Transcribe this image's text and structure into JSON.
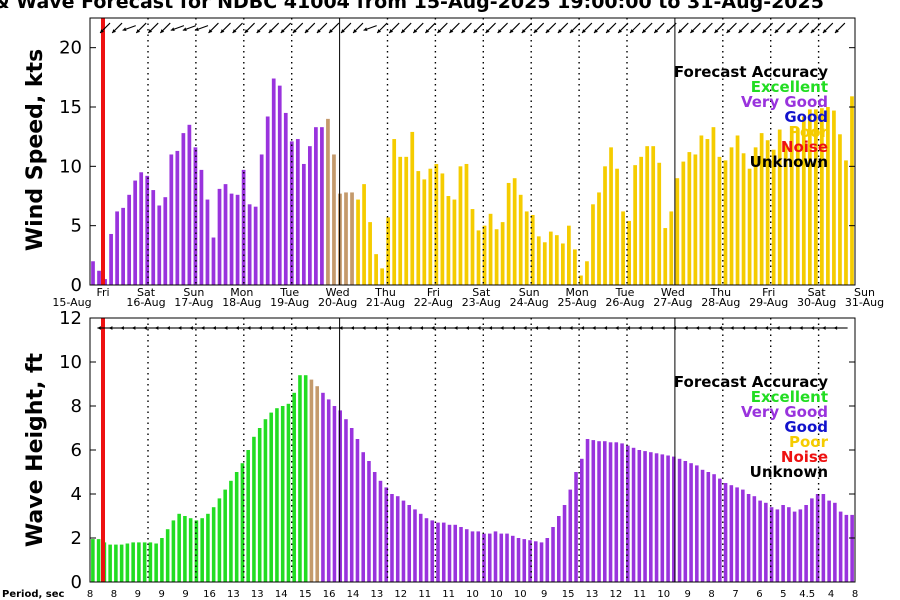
{
  "title": "& Wave Forecast for NDBC 41004 from 15-Aug-2025 19:00:00 to 31-Aug-2025",
  "colors": {
    "excellent": "#22dd22",
    "very_good": "#9933dd",
    "good": "#1111cc",
    "poor": "#f5cc00",
    "noise": "#ee1111",
    "unknown": "#000000",
    "transition": "#c49a6c",
    "now_line": "#ee1111"
  },
  "legend": {
    "title": "Forecast Accuracy",
    "items": [
      {
        "label": "Excellent",
        "color": "#22dd22"
      },
      {
        "label": "Very Good",
        "color": "#9933dd"
      },
      {
        "label": "Good",
        "color": "#1111cc"
      },
      {
        "label": "Poor",
        "color": "#f5cc00"
      },
      {
        "label": "Noise",
        "color": "#ee1111"
      },
      {
        "label": "Unknown",
        "color": "#000000"
      }
    ]
  },
  "day_labels": [
    {
      "day": "Fri",
      "date": "15-Aug"
    },
    {
      "day": "Sat",
      "date": "16-Aug"
    },
    {
      "day": "Sun",
      "date": "17-Aug"
    },
    {
      "day": "Mon",
      "date": "18-Aug"
    },
    {
      "day": "Tue",
      "date": "19-Aug"
    },
    {
      "day": "Wed",
      "date": "20-Aug"
    },
    {
      "day": "Thu",
      "date": "21-Aug"
    },
    {
      "day": "Fri",
      "date": "22-Aug"
    },
    {
      "day": "Sat",
      "date": "23-Aug"
    },
    {
      "day": "Sun",
      "date": "24-Aug"
    },
    {
      "day": "Mon",
      "date": "25-Aug"
    },
    {
      "day": "Tue",
      "date": "26-Aug"
    },
    {
      "day": "Wed",
      "date": "27-Aug"
    },
    {
      "day": "Thu",
      "date": "28-Aug"
    },
    {
      "day": "Fri",
      "date": "29-Aug"
    },
    {
      "day": "Sat",
      "date": "30-Aug"
    },
    {
      "day": "Sun",
      "date": "31-Aug"
    }
  ],
  "period_label": "Period, sec",
  "period_values": [
    "8",
    "8",
    "9",
    "9",
    "9",
    "16",
    "13",
    "13",
    "14",
    "15",
    "16",
    "14",
    "13",
    "12",
    "11",
    "11",
    "10",
    "10",
    "10",
    "9",
    "15",
    "13",
    "12",
    "11",
    "10",
    "9",
    "8",
    "7",
    "6",
    "5",
    "4.5",
    "4",
    "8"
  ],
  "chart_data": [
    {
      "type": "bar",
      "ylabel": "Wind Speed, kts",
      "ylim": [
        0,
        22.5
      ],
      "yticks": [
        0,
        5,
        10,
        15,
        20
      ],
      "x_unit": "3-hour intervals from 15-Aug 19:00",
      "values": [
        2.0,
        1.2,
        0.5,
        4.3,
        6.2,
        6.5,
        7.6,
        8.8,
        9.5,
        9.2,
        8.0,
        6.7,
        7.4,
        11.0,
        11.3,
        12.8,
        13.5,
        11.6,
        9.7,
        7.2,
        4.0,
        8.1,
        8.5,
        7.7,
        7.6,
        9.7,
        6.8,
        6.6,
        11.0,
        14.2,
        17.4,
        16.8,
        14.5,
        12.1,
        12.3,
        10.2,
        11.7,
        13.3,
        13.3,
        14.0,
        11.0,
        7.7,
        7.8,
        7.8,
        7.2,
        8.5,
        5.3,
        2.6,
        1.4,
        5.7,
        12.3,
        10.8,
        10.8,
        12.9,
        9.6,
        8.9,
        9.8,
        10.2,
        9.4,
        7.5,
        7.2,
        10.0,
        10.2,
        6.4,
        4.6,
        5.0,
        6.0,
        4.7,
        5.3,
        8.6,
        9.0,
        7.6,
        6.2,
        5.9,
        4.1,
        3.6,
        4.5,
        4.2,
        3.5,
        5.0,
        3.0,
        0.8,
        2.0,
        6.8,
        7.8,
        10.0,
        11.6,
        9.8,
        6.2,
        5.4,
        10.1,
        10.8,
        11.7,
        11.7,
        10.3,
        4.8,
        6.2,
        9.0,
        10.4,
        11.2,
        11.0,
        12.6,
        12.3,
        13.3,
        10.8,
        10.5,
        11.6,
        12.6,
        11.1,
        9.8,
        11.6,
        12.8,
        12.2,
        11.4,
        13.1,
        11.9,
        13.4,
        13.2,
        14.2,
        14.8,
        14.8,
        14.9,
        15.0,
        14.7,
        12.7,
        10.5,
        15.9
      ],
      "accuracy": [
        "very_good",
        "very_good",
        "very_good",
        "very_good",
        "very_good",
        "very_good",
        "very_good",
        "very_good",
        "very_good",
        "very_good",
        "very_good",
        "very_good",
        "very_good",
        "very_good",
        "very_good",
        "very_good",
        "very_good",
        "very_good",
        "very_good",
        "very_good",
        "very_good",
        "very_good",
        "very_good",
        "very_good",
        "very_good",
        "very_good",
        "very_good",
        "very_good",
        "very_good",
        "very_good",
        "very_good",
        "very_good",
        "very_good",
        "very_good",
        "very_good",
        "very_good",
        "very_good",
        "very_good",
        "very_good",
        "transition",
        "transition",
        "transition",
        "transition",
        "transition",
        "poor",
        "poor",
        "poor",
        "poor",
        "poor",
        "poor",
        "poor",
        "poor",
        "poor",
        "poor",
        "poor",
        "poor",
        "poor",
        "poor",
        "poor",
        "poor",
        "poor",
        "poor",
        "poor",
        "poor",
        "poor",
        "poor",
        "poor",
        "poor",
        "poor",
        "poor",
        "poor",
        "poor",
        "poor",
        "poor",
        "poor",
        "poor",
        "poor",
        "poor",
        "poor",
        "poor",
        "poor",
        "poor",
        "poor",
        "poor",
        "poor",
        "poor",
        "poor",
        "poor",
        "poor",
        "poor",
        "poor",
        "poor",
        "poor",
        "poor",
        "poor",
        "poor",
        "poor",
        "poor",
        "poor",
        "poor",
        "poor",
        "poor",
        "poor",
        "poor",
        "poor",
        "poor",
        "poor",
        "poor",
        "poor",
        "poor",
        "poor",
        "poor",
        "poor",
        "poor",
        "poor",
        "poor",
        "poor",
        "poor",
        "poor",
        "poor",
        "poor",
        "poor",
        "poor",
        "poor",
        "poor",
        "poor",
        "poor",
        "poor",
        "poor"
      ],
      "direction_deg": [
        225,
        225,
        225,
        225,
        225,
        225,
        200,
        200,
        225,
        225,
        225,
        225,
        225,
        225,
        200,
        225,
        200,
        200,
        200,
        225,
        225,
        200,
        225,
        225,
        225,
        225,
        225,
        225,
        225,
        225,
        225,
        225,
        225,
        225,
        225,
        225,
        225,
        225,
        225,
        225,
        225,
        225,
        225,
        225,
        225,
        225,
        200,
        225,
        225,
        225,
        225,
        225,
        225,
        225,
        225,
        225,
        225,
        225,
        225,
        225,
        225,
        225,
        225,
        225,
        225,
        225,
        225,
        225,
        225,
        225,
        225,
        225,
        225,
        225,
        225,
        225,
        225,
        225,
        225,
        225,
        225,
        225,
        225,
        225,
        225,
        225,
        225,
        225,
        225,
        225,
        225,
        225,
        225,
        225,
        225,
        225,
        225,
        225,
        225,
        225,
        225,
        225,
        225,
        225,
        225,
        225,
        225,
        225,
        225,
        225,
        225,
        225,
        225,
        225,
        225,
        225,
        225,
        225,
        225,
        225,
        225,
        225,
        225,
        225,
        225,
        225,
        225,
        225,
        225,
        225,
        225,
        225,
        225,
        225
      ]
    },
    {
      "type": "bar",
      "ylabel": "Wave Height, ft",
      "ylim": [
        0,
        12
      ],
      "yticks": [
        0,
        2,
        4,
        6,
        8,
        10,
        12
      ],
      "x_unit": "3-hour intervals from 15-Aug 19:00",
      "values": [
        1.95,
        1.95,
        1.8,
        1.7,
        1.7,
        1.7,
        1.75,
        1.8,
        1.8,
        1.8,
        1.8,
        1.75,
        2.0,
        2.4,
        2.8,
        3.1,
        3.0,
        2.9,
        2.8,
        2.9,
        3.1,
        3.4,
        3.8,
        4.2,
        4.6,
        5.0,
        5.4,
        6.0,
        6.6,
        7.0,
        7.4,
        7.7,
        7.9,
        8.0,
        8.1,
        8.6,
        9.4,
        9.4,
        9.2,
        8.9,
        8.6,
        8.3,
        8.0,
        7.8,
        7.4,
        7.0,
        6.5,
        5.9,
        5.5,
        5.0,
        4.6,
        4.3,
        4.0,
        3.9,
        3.7,
        3.5,
        3.3,
        3.1,
        2.9,
        2.8,
        2.7,
        2.7,
        2.6,
        2.6,
        2.5,
        2.4,
        2.3,
        2.3,
        2.2,
        2.2,
        2.3,
        2.2,
        2.2,
        2.1,
        2.0,
        1.95,
        1.9,
        1.85,
        1.8,
        2.0,
        2.5,
        3.0,
        3.5,
        4.2,
        5.0,
        5.6,
        6.5,
        6.45,
        6.4,
        6.4,
        6.35,
        6.35,
        6.3,
        6.2,
        6.1,
        6.0,
        5.95,
        5.9,
        5.85,
        5.8,
        5.75,
        5.7,
        5.6,
        5.5,
        5.4,
        5.3,
        5.1,
        5.0,
        4.9,
        4.7,
        4.5,
        4.4,
        4.3,
        4.2,
        4.0,
        3.9,
        3.7,
        3.6,
        3.4,
        3.3,
        3.5,
        3.4,
        3.2,
        3.3,
        3.5,
        3.8,
        4.0,
        4.0,
        3.7,
        3.6,
        3.2,
        3.05,
        3.05
      ],
      "accuracy": [
        "excellent",
        "excellent",
        "excellent",
        "excellent",
        "excellent",
        "excellent",
        "excellent",
        "excellent",
        "excellent",
        "excellent",
        "excellent",
        "excellent",
        "excellent",
        "excellent",
        "excellent",
        "excellent",
        "excellent",
        "excellent",
        "excellent",
        "excellent",
        "excellent",
        "excellent",
        "excellent",
        "excellent",
        "excellent",
        "excellent",
        "excellent",
        "excellent",
        "excellent",
        "excellent",
        "excellent",
        "excellent",
        "excellent",
        "excellent",
        "excellent",
        "excellent",
        "excellent",
        "excellent",
        "transition",
        "transition",
        "very_good",
        "very_good",
        "very_good",
        "very_good",
        "very_good",
        "very_good",
        "very_good",
        "very_good",
        "very_good",
        "very_good",
        "very_good",
        "very_good",
        "very_good",
        "very_good",
        "very_good",
        "very_good",
        "very_good",
        "very_good",
        "very_good",
        "very_good",
        "very_good",
        "very_good",
        "very_good",
        "very_good",
        "very_good",
        "very_good",
        "very_good",
        "very_good",
        "very_good",
        "very_good",
        "very_good",
        "very_good",
        "very_good",
        "very_good",
        "very_good",
        "very_good",
        "very_good",
        "very_good",
        "very_good",
        "very_good",
        "very_good",
        "very_good",
        "very_good",
        "very_good",
        "very_good",
        "very_good",
        "very_good",
        "very_good",
        "very_good",
        "very_good",
        "very_good",
        "very_good",
        "very_good",
        "very_good",
        "very_good",
        "very_good",
        "very_good",
        "very_good",
        "very_good",
        "very_good",
        "very_good",
        "very_good",
        "very_good",
        "very_good",
        "very_good",
        "very_good",
        "very_good",
        "very_good",
        "very_good",
        "very_good",
        "very_good",
        "very_good",
        "very_good",
        "very_good",
        "very_good",
        "very_good",
        "very_good",
        "very_good",
        "very_good",
        "very_good",
        "very_good",
        "very_good",
        "very_good",
        "very_good",
        "very_good",
        "very_good",
        "very_good",
        "very_good",
        "very_good",
        "very_good",
        "very_good",
        "very_good",
        "very_good",
        "very_good"
      ],
      "direction_deg": [
        180,
        180,
        180,
        180,
        180,
        180,
        180,
        180,
        180,
        180,
        180,
        180,
        180,
        180,
        180,
        180,
        180,
        180,
        180,
        180,
        180,
        180,
        180,
        180,
        180,
        180,
        180,
        180,
        180,
        180,
        180,
        180,
        180,
        180,
        180,
        180,
        180,
        180,
        180,
        180,
        180,
        180,
        180,
        180,
        180,
        180,
        180,
        180,
        180,
        180,
        180,
        180,
        180,
        180,
        180,
        180,
        180,
        180,
        180,
        180,
        180,
        180,
        180,
        180,
        180,
        180,
        180,
        180,
        180,
        180,
        180,
        180,
        180,
        180,
        180,
        180,
        180,
        180,
        180,
        180,
        180,
        180,
        180,
        180,
        180,
        180,
        180,
        180,
        180,
        180,
        180,
        180,
        180,
        180,
        180,
        180,
        180,
        180,
        180,
        180,
        180,
        180,
        180,
        180,
        180,
        180,
        180,
        180,
        180,
        180,
        180,
        180,
        180,
        180,
        180,
        180,
        180,
        180,
        180,
        180,
        180,
        180,
        180,
        180,
        180,
        180,
        180,
        180,
        180,
        180,
        180,
        180,
        180,
        180,
        180
      ]
    }
  ]
}
